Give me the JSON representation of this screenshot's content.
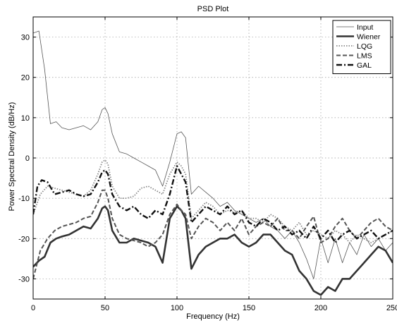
{
  "chart_data": {
    "type": "line",
    "title": "PSD Plot",
    "xlabel": "Frequency (Hz)",
    "ylabel": "Power Spectral Density (dB/Hz)",
    "xlim": [
      0,
      250
    ],
    "ylim": [
      -35,
      35
    ],
    "xticks": [
      0,
      50,
      100,
      150,
      200,
      250
    ],
    "yticks": [
      -30,
      -20,
      -10,
      0,
      10,
      20,
      30
    ],
    "grid": true,
    "legend_position": "top-right",
    "series": [
      {
        "name": "Input",
        "color": "#555555",
        "style": "thin",
        "x": [
          0,
          4,
          8,
          12,
          16,
          20,
          25,
          30,
          35,
          40,
          45,
          48,
          50,
          52,
          55,
          60,
          65,
          70,
          75,
          80,
          85,
          90,
          95,
          100,
          103,
          106,
          110,
          115,
          120,
          125,
          130,
          135,
          140,
          145,
          150,
          155,
          160,
          165,
          170,
          175,
          180,
          185,
          190,
          195,
          200,
          205,
          210,
          215,
          220,
          225,
          230,
          235,
          240,
          245,
          250
        ],
        "y": [
          31,
          31.5,
          22,
          8.5,
          9,
          7.5,
          7,
          7.5,
          8,
          7,
          9,
          12,
          12.5,
          11,
          6,
          1.5,
          1,
          0,
          -1,
          -2,
          -3,
          -7,
          -1,
          6,
          6.5,
          5,
          -9,
          -7,
          -8.5,
          -10,
          -12,
          -11,
          -13,
          -14,
          -15,
          -16,
          -15,
          -17,
          -18,
          -20,
          -18,
          -21,
          -25,
          -30,
          -20,
          -26,
          -20,
          -26,
          -21,
          -24,
          -19,
          -22,
          -20,
          -23,
          -21
        ]
      },
      {
        "name": "Wiener",
        "color": "#333333",
        "style": "thick",
        "x": [
          0,
          4,
          8,
          12,
          16,
          20,
          25,
          30,
          35,
          40,
          45,
          48,
          50,
          52,
          55,
          60,
          65,
          70,
          75,
          80,
          85,
          90,
          95,
          100,
          103,
          106,
          110,
          115,
          120,
          125,
          130,
          135,
          140,
          145,
          150,
          155,
          160,
          165,
          170,
          175,
          180,
          185,
          190,
          195,
          200,
          205,
          210,
          215,
          220,
          225,
          230,
          235,
          240,
          245,
          250
        ],
        "y": [
          -27,
          -25.5,
          -24.5,
          -21,
          -20,
          -19.5,
          -19,
          -18,
          -17,
          -17.5,
          -15,
          -12.5,
          -12,
          -13,
          -18,
          -21,
          -21,
          -20,
          -20.5,
          -21,
          -22,
          -26,
          -15,
          -12,
          -13,
          -15,
          -27.5,
          -24,
          -22,
          -21,
          -20,
          -20,
          -19,
          -21,
          -22,
          -21,
          -19,
          -19,
          -21,
          -23,
          -24,
          -28,
          -30,
          -33,
          -34,
          -32,
          -33,
          -30,
          -30,
          -28,
          -26,
          -24,
          -22,
          -23,
          -26
        ]
      },
      {
        "name": "LQG",
        "color": "#888888",
        "style": "dotted",
        "x": [
          0,
          5,
          10,
          15,
          20,
          25,
          30,
          35,
          40,
          45,
          48,
          50,
          52,
          55,
          60,
          65,
          70,
          75,
          80,
          85,
          90,
          95,
          100,
          103,
          106,
          110,
          115,
          120,
          125,
          130,
          135,
          140,
          145,
          150,
          155,
          160,
          165,
          170,
          175,
          180,
          185,
          190,
          195,
          200,
          205,
          210,
          215,
          220,
          225,
          230,
          235,
          240,
          245,
          250
        ],
        "y": [
          -14,
          -9,
          -7,
          -7.5,
          -8,
          -8.5,
          -9,
          -9.5,
          -8,
          -4,
          -1,
          -0.5,
          -1.5,
          -7,
          -10,
          -10,
          -9.5,
          -7.5,
          -7,
          -8,
          -9,
          -4,
          -1,
          -2,
          -4,
          -15,
          -13,
          -11,
          -12,
          -14,
          -13,
          -13.5,
          -13,
          -15,
          -15,
          -16,
          -14,
          -15,
          -17,
          -18,
          -16,
          -19,
          -18,
          -19,
          -20,
          -18,
          -19,
          -21,
          -19,
          -20,
          -21,
          -20,
          -19,
          -18
        ]
      },
      {
        "name": "LMS",
        "color": "#555555",
        "style": "dashed",
        "x": [
          0,
          5,
          10,
          15,
          20,
          25,
          30,
          35,
          40,
          45,
          48,
          50,
          52,
          55,
          60,
          65,
          70,
          75,
          80,
          85,
          90,
          95,
          100,
          103,
          106,
          110,
          115,
          120,
          125,
          130,
          135,
          140,
          145,
          150,
          155,
          160,
          165,
          170,
          175,
          180,
          185,
          190,
          195,
          200,
          205,
          210,
          215,
          220,
          225,
          230,
          235,
          240,
          245,
          250
        ],
        "y": [
          -30,
          -23,
          -20,
          -18,
          -17,
          -16.5,
          -16,
          -15,
          -14.5,
          -11,
          -8,
          -8,
          -10,
          -15,
          -19,
          -20,
          -20.5,
          -21,
          -22,
          -21,
          -19,
          -14,
          -11.5,
          -13,
          -14,
          -20,
          -17,
          -15,
          -16,
          -18,
          -16,
          -18,
          -15,
          -19,
          -17,
          -16,
          -17,
          -15,
          -18,
          -18,
          -20,
          -17,
          -14.5,
          -21,
          -20,
          -17,
          -15,
          -18,
          -20,
          -18,
          -16,
          -15,
          -17,
          -18
        ]
      },
      {
        "name": "GAL",
        "color": "#111111",
        "style": "dashdot",
        "x": [
          0,
          3,
          6,
          10,
          15,
          20,
          25,
          30,
          35,
          40,
          45,
          48,
          50,
          52,
          55,
          60,
          65,
          70,
          75,
          80,
          85,
          90,
          95,
          100,
          103,
          106,
          110,
          115,
          120,
          125,
          130,
          135,
          140,
          145,
          150,
          155,
          160,
          165,
          170,
          175,
          180,
          185,
          190,
          195,
          200,
          205,
          210,
          215,
          220,
          225,
          230,
          235,
          240,
          245,
          250
        ],
        "y": [
          -14,
          -7,
          -5.5,
          -6,
          -9,
          -8.5,
          -8,
          -9,
          -9.5,
          -9,
          -6,
          -3.5,
          -3,
          -4,
          -9,
          -12,
          -13,
          -12,
          -14,
          -15,
          -13,
          -14,
          -9,
          -2,
          -4,
          -6,
          -16,
          -14,
          -12,
          -13,
          -14,
          -12,
          -14,
          -13,
          -16,
          -17,
          -15,
          -16,
          -18,
          -17,
          -19,
          -18,
          -20,
          -17,
          -20,
          -18,
          -21,
          -19,
          -18,
          -20,
          -19,
          -18,
          -20,
          -19,
          -18
        ]
      }
    ]
  }
}
